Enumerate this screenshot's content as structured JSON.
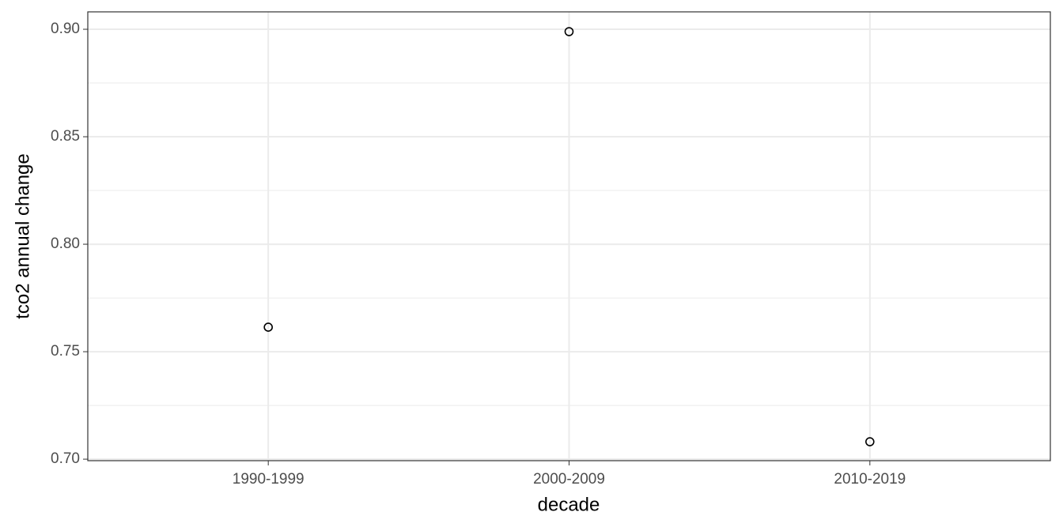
{
  "chart_data": {
    "type": "scatter",
    "x_label": "decade",
    "y_label": "tco2 annual change",
    "categories": [
      "1990-1999",
      "2000-2009",
      "2010-2019"
    ],
    "values": [
      0.7614,
      0.8989,
      0.7081
    ],
    "color": "#000000",
    "ylim": [
      0.6993,
      0.9081
    ],
    "yticks": [
      {
        "value": 0.7,
        "label": "0.70"
      },
      0.75,
      {
        "value": 0.8,
        "label": "0.80"
      },
      0.85,
      {
        "value": 0.9,
        "label": "0.90"
      }
    ],
    "grid": true
  }
}
